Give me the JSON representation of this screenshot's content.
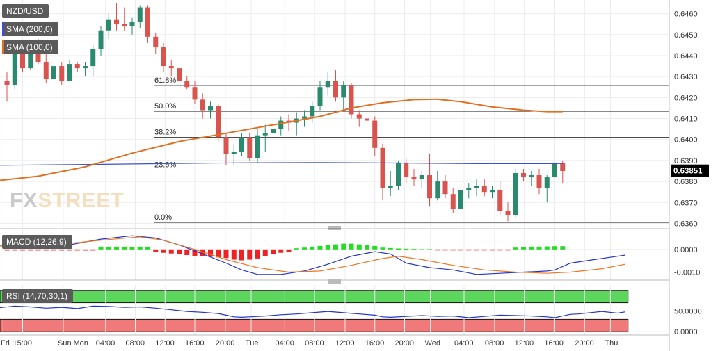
{
  "labels": {
    "symbol": "NZD/USD",
    "sma200": "SMA (200,0)",
    "sma100": "SMA (100,0)",
    "macd": "MACD (12,26,9)",
    "rsi": "RSI (14,70,30,1)"
  },
  "watermark": {
    "part1": "FX",
    "part2": "STREET"
  },
  "colors": {
    "up": "#2a8a6e",
    "down": "#d9534f",
    "sma200": "#3b4fd6",
    "sma100": "#e07020",
    "macd_pos": "#22dd22",
    "macd_neg": "#ee2222",
    "rsi_overbought": "#5cd65c",
    "rsi_oversold": "#f07a7a",
    "price_tag": "#000000"
  },
  "chart_data": [
    {
      "type": "candlestick",
      "title": "NZD/USD",
      "ylim": [
        0.63575,
        0.64665
      ],
      "yticks": [
        "0.6360",
        "0.6370",
        "0.6380",
        "0.6390",
        "0.6400",
        "0.6410",
        "0.6420",
        "0.6430",
        "0.6440",
        "0.6450",
        "0.6460"
      ],
      "current_price": "0.63851",
      "x_ticks": [
        {
          "label": "Fri",
          "i": -0.5
        },
        {
          "label": "15:00",
          "i": 2
        },
        {
          "label": "Sun",
          "i": 7.2
        },
        {
          "label": "Mon",
          "i": 9.2
        },
        {
          "label": "04:00",
          "i": 12.6
        },
        {
          "label": "08:00",
          "i": 16.4
        },
        {
          "label": "12:00",
          "i": 20.2
        },
        {
          "label": "16:00",
          "i": 24
        },
        {
          "label": "20:00",
          "i": 27.9
        },
        {
          "label": "Tue",
          "i": 31.2
        },
        {
          "label": "04:00",
          "i": 35.5
        },
        {
          "label": "08:00",
          "i": 39.3
        },
        {
          "label": "12:00",
          "i": 43.2
        },
        {
          "label": "16:00",
          "i": 47
        },
        {
          "label": "20:00",
          "i": 50.8
        },
        {
          "label": "Wed",
          "i": 54.1
        },
        {
          "label": "04:00",
          "i": 58.4
        },
        {
          "label": "08:00",
          "i": 62.3
        },
        {
          "label": "12:00",
          "i": 66.1
        },
        {
          "label": "16:00",
          "i": 69.9
        },
        {
          "label": "20:00",
          "i": 73.8
        },
        {
          "label": "Thu",
          "i": 77.1
        }
      ],
      "fibonacci": [
        {
          "label": "61.8%",
          "value": 0.64258
        },
        {
          "label": "50.0%",
          "value": 0.64135
        },
        {
          "label": "38.2%",
          "value": 0.6401
        },
        {
          "label": "23.6%",
          "value": 0.63855
        },
        {
          "label": "0.0%",
          "value": 0.63605
        }
      ],
      "candles": [
        [
          0.6428,
          0.6432,
          0.6418,
          0.6426
        ],
        [
          0.6426,
          0.6442,
          0.6424,
          0.6441
        ],
        [
          0.6441,
          0.6446,
          0.6432,
          0.6434
        ],
        [
          0.6434,
          0.6447,
          0.6433,
          0.6445
        ],
        [
          0.6445,
          0.6448,
          0.6436,
          0.6437
        ],
        [
          0.6437,
          0.6442,
          0.6427,
          0.6429
        ],
        [
          0.6429,
          0.6438,
          0.6425,
          0.6435
        ],
        [
          0.6435,
          0.6437,
          0.6426,
          0.6428
        ],
        [
          0.6428,
          0.6438,
          0.6428,
          0.6436
        ],
        [
          0.6436,
          0.6437,
          0.6432,
          0.6434
        ],
        [
          0.6434,
          0.6437,
          0.643,
          0.6435
        ],
        [
          0.6435,
          0.6445,
          0.643,
          0.6443
        ],
        [
          0.6443,
          0.6454,
          0.644,
          0.6452
        ],
        [
          0.6452,
          0.646,
          0.6448,
          0.6457
        ],
        [
          0.6457,
          0.6465,
          0.6452,
          0.6455
        ],
        [
          0.6455,
          0.6463,
          0.6452,
          0.6454
        ],
        [
          0.6454,
          0.6458,
          0.645,
          0.6456
        ],
        [
          0.6456,
          0.6464,
          0.6453,
          0.6463
        ],
        [
          0.6463,
          0.6464,
          0.6446,
          0.6449
        ],
        [
          0.6449,
          0.6451,
          0.6441,
          0.6444
        ],
        [
          0.6444,
          0.6446,
          0.6432,
          0.6435
        ],
        [
          0.6435,
          0.6438,
          0.643,
          0.6434
        ],
        [
          0.6434,
          0.6436,
          0.6426,
          0.6428
        ],
        [
          0.6428,
          0.643,
          0.6424,
          0.6425
        ],
        [
          0.6425,
          0.6428,
          0.6417,
          0.6419
        ],
        [
          0.6419,
          0.6422,
          0.641,
          0.6414
        ],
        [
          0.6414,
          0.6418,
          0.641,
          0.6416
        ],
        [
          0.6416,
          0.6417,
          0.6399,
          0.6401
        ],
        [
          0.6401,
          0.6403,
          0.6388,
          0.6393
        ],
        [
          0.6393,
          0.6398,
          0.6388,
          0.6394
        ],
        [
          0.6394,
          0.6403,
          0.6392,
          0.6401
        ],
        [
          0.6401,
          0.6403,
          0.639,
          0.6391
        ],
        [
          0.6391,
          0.6405,
          0.6389,
          0.6402
        ],
        [
          0.6402,
          0.6407,
          0.6394,
          0.6403
        ],
        [
          0.6403,
          0.641,
          0.6398,
          0.6405
        ],
        [
          0.6405,
          0.6411,
          0.6402,
          0.6409
        ],
        [
          0.6409,
          0.6412,
          0.6404,
          0.6408
        ],
        [
          0.6408,
          0.6413,
          0.6402,
          0.641
        ],
        [
          0.641,
          0.6414,
          0.6406,
          0.6411
        ],
        [
          0.6411,
          0.6418,
          0.6408,
          0.6416
        ],
        [
          0.6416,
          0.6428,
          0.6414,
          0.6425
        ],
        [
          0.6425,
          0.6432,
          0.6421,
          0.6428
        ],
        [
          0.6428,
          0.6433,
          0.6418,
          0.642
        ],
        [
          0.642,
          0.6428,
          0.6414,
          0.6426
        ],
        [
          0.6426,
          0.6427,
          0.641,
          0.6412
        ],
        [
          0.6412,
          0.6414,
          0.6406,
          0.641
        ],
        [
          0.641,
          0.6412,
          0.6396,
          0.6409
        ],
        [
          0.6409,
          0.6411,
          0.6392,
          0.6396
        ],
        [
          0.6396,
          0.6398,
          0.6371,
          0.6377
        ],
        [
          0.6377,
          0.6385,
          0.6373,
          0.6378
        ],
        [
          0.6378,
          0.639,
          0.6376,
          0.6389
        ],
        [
          0.6389,
          0.6391,
          0.6379,
          0.6382
        ],
        [
          0.6382,
          0.6386,
          0.6378,
          0.6381
        ],
        [
          0.6381,
          0.6385,
          0.6377,
          0.6383
        ],
        [
          0.6383,
          0.6393,
          0.6368,
          0.6372
        ],
        [
          0.6372,
          0.6385,
          0.6371,
          0.638
        ],
        [
          0.638,
          0.6383,
          0.6372,
          0.6374
        ],
        [
          0.6374,
          0.6377,
          0.6365,
          0.6367
        ],
        [
          0.6367,
          0.6378,
          0.6365,
          0.6376
        ],
        [
          0.6376,
          0.6379,
          0.6372,
          0.6377
        ],
        [
          0.6377,
          0.6381,
          0.6373,
          0.6378
        ],
        [
          0.6378,
          0.6381,
          0.6373,
          0.6375
        ],
        [
          0.6375,
          0.6378,
          0.6372,
          0.6376
        ],
        [
          0.6376,
          0.638,
          0.6364,
          0.6366
        ],
        [
          0.6366,
          0.637,
          0.6361,
          0.6364
        ],
        [
          0.6364,
          0.6386,
          0.6363,
          0.6384
        ],
        [
          0.6384,
          0.6386,
          0.638,
          0.6382
        ],
        [
          0.6382,
          0.6385,
          0.6378,
          0.6383
        ],
        [
          0.6383,
          0.6386,
          0.6374,
          0.6377
        ],
        [
          0.6377,
          0.6383,
          0.637,
          0.6382
        ],
        [
          0.6382,
          0.639,
          0.6375,
          0.6389
        ],
        [
          0.6389,
          0.639,
          0.6379,
          0.6385
        ]
      ],
      "sma200": [
        [
          -1,
          0.63877
        ],
        [
          8,
          0.6388
        ],
        [
          20,
          0.63885
        ],
        [
          30,
          0.63889
        ],
        [
          40,
          0.6389
        ],
        [
          50,
          0.63888
        ],
        [
          60,
          0.63885
        ],
        [
          70,
          0.63885
        ],
        [
          71,
          0.63886
        ]
      ],
      "sma100": [
        [
          -1,
          0.63805
        ],
        [
          4,
          0.63825
        ],
        [
          10,
          0.6387
        ],
        [
          16,
          0.63935
        ],
        [
          22,
          0.6399
        ],
        [
          28,
          0.6403
        ],
        [
          34,
          0.6407
        ],
        [
          40,
          0.6411
        ],
        [
          44,
          0.6415
        ],
        [
          48,
          0.64175
        ],
        [
          52,
          0.6419
        ],
        [
          55,
          0.64192
        ],
        [
          58,
          0.6418
        ],
        [
          62,
          0.64155
        ],
        [
          66,
          0.6414
        ],
        [
          69,
          0.64133
        ],
        [
          71,
          0.64133
        ]
      ]
    },
    {
      "type": "bar+line",
      "title": "MACD (12,26,9)",
      "yticks": [
        "0.0000",
        "-0.0010"
      ],
      "ylim": [
        -0.00135,
        0.00085
      ],
      "histogram": [
        -5e-05,
        -5e-05,
        -5e-05,
        -5e-05,
        -5e-05,
        -5e-05,
        -5e-05,
        -5e-05,
        -5e-05,
        -5e-05,
        -5e-05,
        -5e-05,
        0.00012,
        0.00012,
        0.00012,
        0.00012,
        0.00012,
        0.00012,
        0.00012,
        -0.00012,
        -0.00015,
        -0.00018,
        -0.00022,
        -0.00025,
        -0.00028,
        -0.0003,
        -0.00032,
        -0.00035,
        -0.00038,
        -0.00045,
        -0.00048,
        -0.00045,
        -0.0004,
        -0.0003,
        -0.00022,
        -0.00015,
        -0.0001,
        5e-05,
        8e-05,
        0.00012,
        0.00015,
        0.00018,
        0.00022,
        0.00025,
        0.00025,
        0.00022,
        0.00018,
        0.00015,
        8e-05,
        6e-05,
        4e-05,
        3e-05,
        2e-05,
        1e-05,
        1e-05,
        -2e-05,
        -3e-05,
        -3e-05,
        -3e-05,
        -3e-05,
        -3e-05,
        -3e-05,
        -3e-05,
        -3e-05,
        -3e-05,
        8e-05,
        0.0001,
        0.00012,
        0.00012,
        0.00013,
        0.00014,
        0.00014
      ],
      "macd_line": [
        [
          -1,
          0.00015
        ],
        [
          4,
          0.00015
        ],
        [
          8,
          0.0002
        ],
        [
          12,
          0.00045
        ],
        [
          16,
          0.0006
        ],
        [
          19,
          0.0005
        ],
        [
          22,
          0.0002
        ],
        [
          25,
          -0.0002
        ],
        [
          28,
          -0.0006
        ],
        [
          30,
          -0.0009
        ],
        [
          32,
          -0.0011
        ],
        [
          35,
          -0.0011
        ],
        [
          38,
          -0.00095
        ],
        [
          41,
          -0.00065
        ],
        [
          44,
          -0.0003
        ],
        [
          47,
          -0.0001
        ],
        [
          49,
          -0.0002
        ],
        [
          51,
          -0.0006
        ],
        [
          54,
          -0.0008
        ],
        [
          57,
          -0.0009
        ],
        [
          60,
          -0.0011
        ],
        [
          63,
          -0.00105
        ],
        [
          66,
          -0.001
        ],
        [
          69,
          -0.00095
        ],
        [
          70,
          -0.0009
        ],
        [
          72,
          -0.0006
        ],
        [
          75,
          -0.00045
        ],
        [
          77,
          -0.00035
        ],
        [
          79,
          -0.00025
        ]
      ],
      "signal_line": [
        [
          -1,
          0.00015
        ],
        [
          6,
          0.0002
        ],
        [
          12,
          0.0004
        ],
        [
          17,
          0.00055
        ],
        [
          20,
          0.0004
        ],
        [
          24,
          0.0
        ],
        [
          28,
          -0.00045
        ],
        [
          32,
          -0.0008
        ],
        [
          36,
          -0.001
        ],
        [
          40,
          -0.00095
        ],
        [
          44,
          -0.0007
        ],
        [
          48,
          -0.0004
        ],
        [
          50,
          -0.0003
        ],
        [
          53,
          -0.00045
        ],
        [
          57,
          -0.0007
        ],
        [
          61,
          -0.0009
        ],
        [
          65,
          -0.001
        ],
        [
          69,
          -0.00105
        ],
        [
          72,
          -0.001
        ],
        [
          76,
          -0.00085
        ],
        [
          79,
          -0.00065
        ]
      ]
    },
    {
      "type": "line",
      "title": "RSI (14,70,30,1)",
      "yticks": [
        "50.0000",
        "0.0000"
      ],
      "ylim": [
        -8,
        113
      ],
      "overbought": 70,
      "oversold": 30,
      "rsi": [
        [
          -1,
          58
        ],
        [
          1,
          62
        ],
        [
          3,
          60
        ],
        [
          5,
          57
        ],
        [
          7,
          59
        ],
        [
          9,
          56
        ],
        [
          11,
          62
        ],
        [
          13,
          61
        ],
        [
          15,
          59
        ],
        [
          17,
          60
        ],
        [
          19,
          57
        ],
        [
          21,
          53
        ],
        [
          23,
          49
        ],
        [
          25,
          47
        ],
        [
          27,
          44
        ],
        [
          28,
          40
        ],
        [
          29,
          36
        ],
        [
          30,
          35
        ],
        [
          31,
          36
        ],
        [
          33,
          38
        ],
        [
          35,
          41
        ],
        [
          37,
          43
        ],
        [
          39,
          46
        ],
        [
          41,
          49
        ],
        [
          43,
          46
        ],
        [
          45,
          43
        ],
        [
          47,
          40
        ],
        [
          48,
          36
        ],
        [
          49,
          35
        ],
        [
          51,
          37
        ],
        [
          53,
          39
        ],
        [
          55,
          37
        ],
        [
          57,
          38
        ],
        [
          59,
          34
        ],
        [
          61,
          37
        ],
        [
          63,
          40
        ],
        [
          65,
          39
        ],
        [
          67,
          38
        ],
        [
          69,
          36
        ],
        [
          70,
          34
        ],
        [
          71,
          38
        ],
        [
          72,
          42
        ],
        [
          73,
          43
        ],
        [
          74,
          45
        ],
        [
          75,
          47
        ],
        [
          76,
          49
        ],
        [
          77,
          47
        ],
        [
          78,
          45
        ],
        [
          79,
          48
        ]
      ]
    }
  ]
}
